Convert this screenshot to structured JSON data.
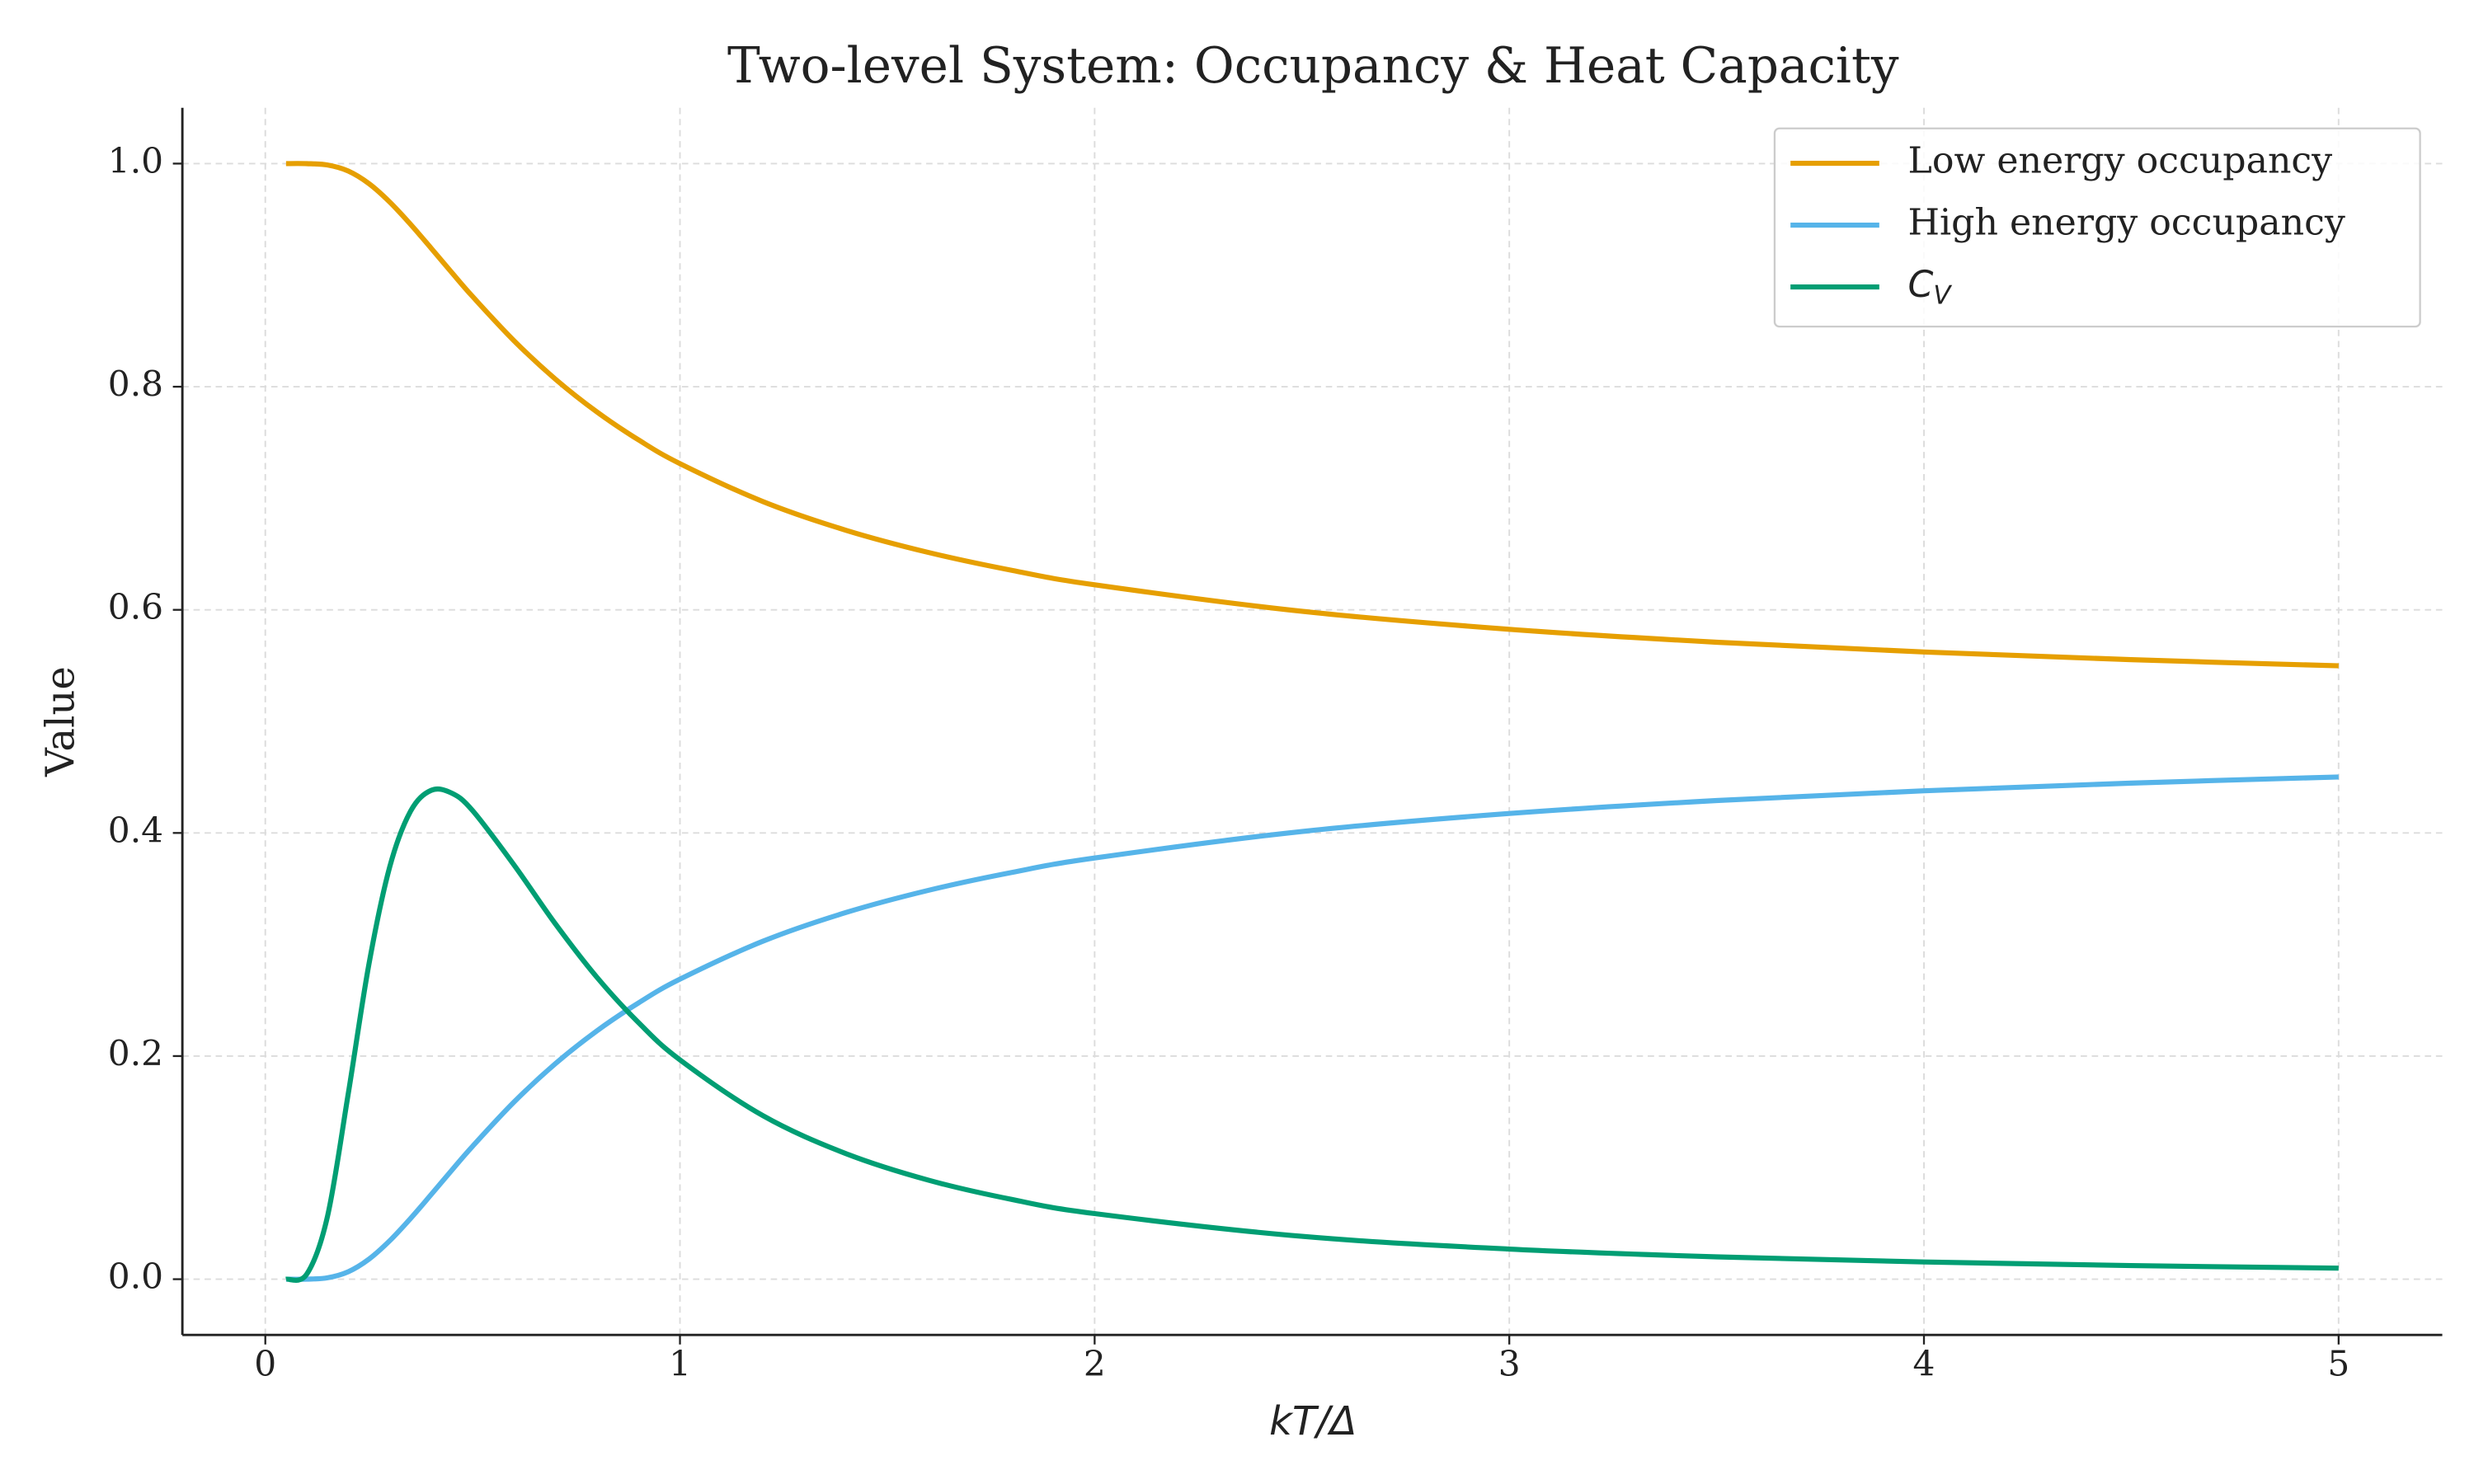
{
  "chart_data": {
    "type": "line",
    "title": "Two-level System: Occupancy & Heat Capacity",
    "xlabel": "kT/Δ",
    "ylabel": "Value",
    "x": [
      0.05,
      0.1,
      0.15,
      0.2,
      0.25,
      0.3,
      0.35,
      0.4,
      0.45,
      0.5,
      0.6,
      0.7,
      0.8,
      0.9,
      1.0,
      1.2,
      1.4,
      1.6,
      1.8,
      2.0,
      2.5,
      3.0,
      3.5,
      4.0,
      4.5,
      5.0
    ],
    "series": [
      {
        "name": "Low energy occupancy",
        "color": "#E69F00",
        "values": [
          1.0,
          0.99995,
          0.99873,
          0.99331,
          0.98201,
          0.96555,
          0.94569,
          0.92414,
          0.90223,
          0.8808,
          0.84113,
          0.80667,
          0.7773,
          0.75234,
          0.73106,
          0.69706,
          0.67135,
          0.65136,
          0.63543,
          0.62246,
          0.59869,
          0.58257,
          0.57095,
          0.56218,
          0.55533,
          0.54983
        ]
      },
      {
        "name": "High energy occupancy",
        "color": "#56B4E9",
        "values": [
          0.0,
          5e-05,
          0.00127,
          0.00669,
          0.01799,
          0.03445,
          0.05431,
          0.07586,
          0.09777,
          0.1192,
          0.15887,
          0.19333,
          0.2227,
          0.24766,
          0.26894,
          0.30294,
          0.32865,
          0.34864,
          0.36457,
          0.37754,
          0.40131,
          0.41743,
          0.42905,
          0.43782,
          0.44467,
          0.45017
        ]
      },
      {
        "name": "C_V",
        "color": "#009E73",
        "values": [
          0.0,
          0.0045,
          0.0564,
          0.1662,
          0.2826,
          0.3695,
          0.4193,
          0.4382,
          0.4356,
          0.42,
          0.3712,
          0.3183,
          0.2705,
          0.23,
          0.1966,
          0.1466,
          0.1126,
          0.0887,
          0.0715,
          0.0588,
          0.0384,
          0.027,
          0.02,
          0.0154,
          0.0122,
          0.0099
        ]
      }
    ],
    "xlim": [
      -0.2,
      5.25
    ],
    "ylim": [
      -0.05,
      1.05
    ],
    "xticks": [
      0,
      1,
      2,
      3,
      4,
      5
    ],
    "yticks": [
      {
        "value": 0,
        "label": "0.0"
      },
      0.2,
      0.4,
      0.6,
      0.8,
      {
        "value": 1,
        "label": "1.0"
      }
    ],
    "grid": true,
    "legend": "upper right"
  }
}
